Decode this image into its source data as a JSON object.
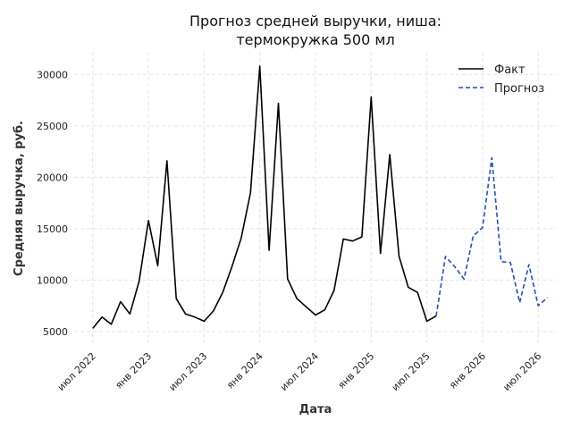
{
  "chart_data": {
    "type": "line",
    "title": [
      "Прогноз средней выручки, ниша:",
      "термокружка 500 мл"
    ],
    "xlabel": "Дата",
    "ylabel": "Средняя выручка, руб.",
    "ylim": [
      3600,
      32200
    ],
    "y_ticks": [
      5000,
      10000,
      15000,
      20000,
      25000,
      30000
    ],
    "x_ticks": [
      {
        "label": "июл 2022",
        "date": "2022-07"
      },
      {
        "label": "янв 2023",
        "date": "2023-01"
      },
      {
        "label": "июл 2023",
        "date": "2023-07"
      },
      {
        "label": "янв 2024",
        "date": "2024-01"
      },
      {
        "label": "июл 2024",
        "date": "2024-07"
      },
      {
        "label": "янв 2025",
        "date": "2025-01"
      },
      {
        "label": "июл 2025",
        "date": "2025-07"
      },
      {
        "label": "янв 2026",
        "date": "2026-01"
      },
      {
        "label": "июл 2026",
        "date": "2026-07"
      }
    ],
    "xlim": [
      "2022-05",
      "2026-09"
    ],
    "grid": true,
    "legend_position": "top-right",
    "series": [
      {
        "name": "Факт",
        "color": "#000000",
        "style": "solid",
        "points": [
          [
            "2022-07",
            5300
          ],
          [
            "2022-08",
            6400
          ],
          [
            "2022-09",
            5700
          ],
          [
            "2022-10",
            7900
          ],
          [
            "2022-11",
            6700
          ],
          [
            "2022-12",
            9900
          ],
          [
            "2023-01",
            15800
          ],
          [
            "2023-02",
            11400
          ],
          [
            "2023-03",
            21600
          ],
          [
            "2023-04",
            8200
          ],
          [
            "2023-05",
            6700
          ],
          [
            "2023-06",
            6400
          ],
          [
            "2023-07",
            6000
          ],
          [
            "2023-08",
            7000
          ],
          [
            "2023-09",
            8800
          ],
          [
            "2023-10",
            11300
          ],
          [
            "2023-11",
            14100
          ],
          [
            "2023-12",
            18500
          ],
          [
            "2024-01",
            30800
          ],
          [
            "2024-02",
            12900
          ],
          [
            "2024-03",
            27200
          ],
          [
            "2024-04",
            10100
          ],
          [
            "2024-05",
            8200
          ],
          [
            "2024-06",
            7400
          ],
          [
            "2024-07",
            6600
          ],
          [
            "2024-08",
            7100
          ],
          [
            "2024-09",
            9000
          ],
          [
            "2024-10",
            14000
          ],
          [
            "2024-11",
            13800
          ],
          [
            "2024-12",
            14200
          ],
          [
            "2025-01",
            27800
          ],
          [
            "2025-02",
            12600
          ],
          [
            "2025-03",
            22200
          ],
          [
            "2025-04",
            12300
          ],
          [
            "2025-05",
            9300
          ],
          [
            "2025-06",
            8800
          ],
          [
            "2025-07",
            6000
          ],
          [
            "2025-08",
            6500
          ]
        ]
      },
      {
        "name": "Прогноз",
        "color": "#1a4fd6",
        "style": "dashed",
        "points": [
          [
            "2025-08",
            6500
          ],
          [
            "2025-09",
            12300
          ],
          [
            "2025-10",
            11300
          ],
          [
            "2025-11",
            10100
          ],
          [
            "2025-12",
            14300
          ],
          [
            "2026-01",
            15100
          ],
          [
            "2026-02",
            21900
          ],
          [
            "2026-03",
            11800
          ],
          [
            "2026-04",
            11700
          ],
          [
            "2026-05",
            7800
          ],
          [
            "2026-06",
            11500
          ],
          [
            "2026-07",
            7500
          ],
          [
            "2026-08",
            8300
          ]
        ]
      }
    ]
  }
}
